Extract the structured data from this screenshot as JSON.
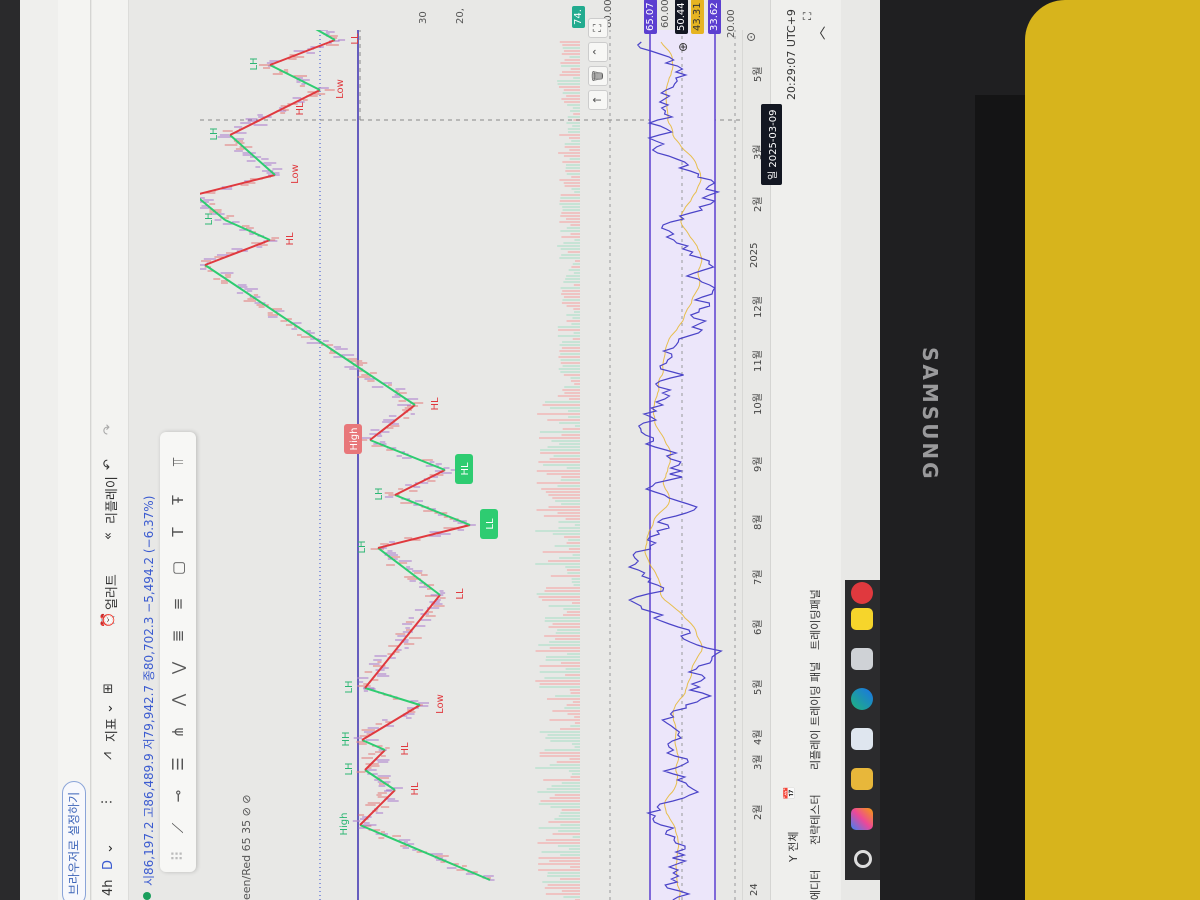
{
  "browser": {
    "banner_button": "브라우저로 설정하기"
  },
  "toolbar": {
    "interval": "4h",
    "chart_type": "D",
    "indicators_label": "지표",
    "alert_label": "얼러트",
    "replay_label": "리플레이",
    "icons": [
      "candles-icon",
      "indicators-icon",
      "layout-grid-icon",
      "alert-icon",
      "replay-icon",
      "undo-icon",
      "redo-icon"
    ]
  },
  "legend": {
    "text": "시86,197.2 고86,489.9 저79,942.7 종80,702.3 −5,494.2 (−6.37%)",
    "status_color": "#1a9e5c"
  },
  "indicator_line": "een/Red 65 35 ⊘ ⊘",
  "drawing_tools": [
    "trend-line",
    "horizontal-ray",
    "parallel-channel",
    "pitchfork",
    "xabcd-pattern",
    "abcd-pattern",
    "fib-retracement",
    "fib-extension",
    "rectangle",
    "text",
    "price-label",
    "long-position"
  ],
  "chart": {
    "pivot_labels": [
      "",
      "High",
      "HL",
      "LH",
      "HL",
      "HH",
      "Low",
      "LH",
      "LL",
      "LH",
      "LL",
      "LH",
      "HL",
      "High",
      "HL",
      "HH",
      "HL",
      "LH",
      "High",
      "Low",
      "LH",
      "HL",
      "Low",
      "LH",
      "LL",
      ""
    ],
    "colors": {
      "up": "#2ecc71",
      "down": "#e0393e",
      "band": "#5b3fd0",
      "rsi": "#4b44c8",
      "rsi_ma": "#e6b422",
      "price_tag": "#22ab8f"
    },
    "price_axis": [
      "30",
      "20,",
      "74."
    ],
    "rsi_axis": {
      "upper": "80.00",
      "lower": "20.00",
      "level_60": "60.00",
      "band_high": "65.07",
      "rsi_value": "50.44",
      "rsi_ma": "43.31",
      "band_low": "33.62"
    },
    "time_axis": [
      "24",
      "2월",
      "3월",
      "4월",
      "5월",
      "6월",
      "7월",
      "8월",
      "9월",
      "10월",
      "11월",
      "12월",
      "2025",
      "2월",
      "3월",
      "5월"
    ],
    "crosshair_date": "일 2025-03-09"
  },
  "chart_controls": [
    "move-up-icon",
    "trash-icon",
    "collapse-icon",
    "maximize-icon"
  ],
  "bottom": {
    "range_label": "Y 전체",
    "time": "20:29:07 UTC+9",
    "tabs": [
      "에디터",
      "전략테스터",
      "리플레이 트레이딩 패널",
      "트레이딩패널"
    ]
  },
  "taskbar": {
    "apps": [
      "start",
      "copilot",
      "file-explorer",
      "store",
      "edge",
      "app",
      "kakaotalk",
      "vivaldi"
    ]
  },
  "monitor": {
    "brand": "SAMSUNG"
  }
}
